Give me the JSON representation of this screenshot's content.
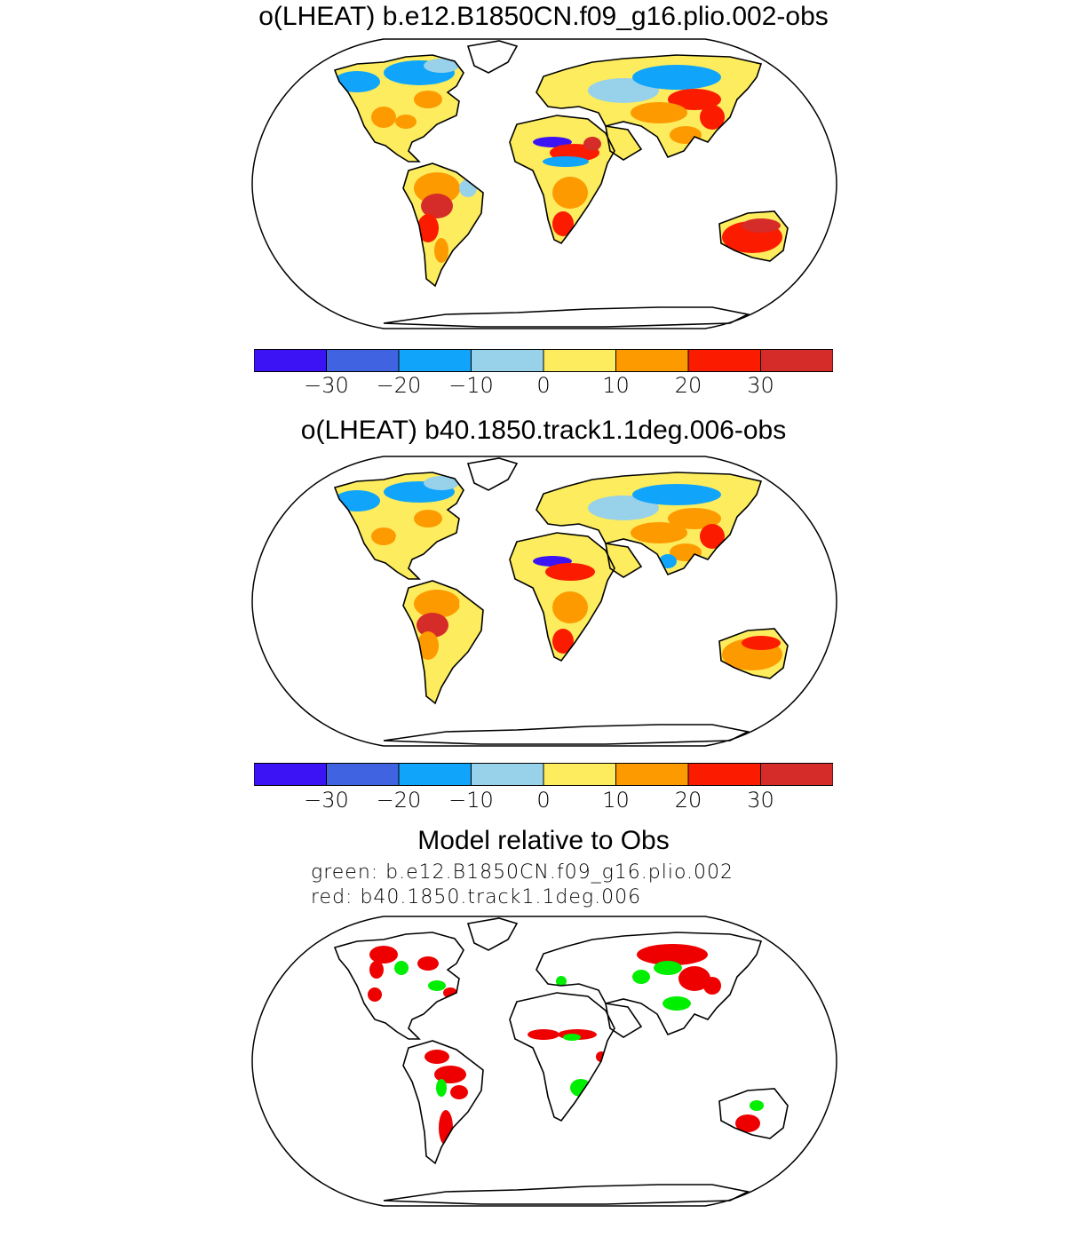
{
  "panels": [
    {
      "title": "o(LHEAT) b.e12.B1850CN.f09_g16.plio.002-obs"
    },
    {
      "title": "o(LHEAT) b40.1850.track1.1deg.006-obs"
    }
  ],
  "colorbar": {
    "levels": [
      "−30",
      "−20",
      "−10",
      "0",
      "10",
      "20",
      "30"
    ],
    "colors": [
      "#3b13f4",
      "#3f63e1",
      "#10a5fb",
      "#98d1ea",
      "#fcec5e",
      "#fd9a00",
      "#fb1c00",
      "#d62c29"
    ]
  },
  "comparison": {
    "title": "Model relative to Obs",
    "legend_green": "green: b.e12.B1850CN.f09_g16.plio.002",
    "legend_red": "red: b40.1850.track1.1deg.006",
    "colors": {
      "green": "#00ee00",
      "red": "#ee0000"
    }
  },
  "map_colors": {
    "land_outline": "#000000",
    "frame": "#000000",
    "background": "#ffffff"
  }
}
